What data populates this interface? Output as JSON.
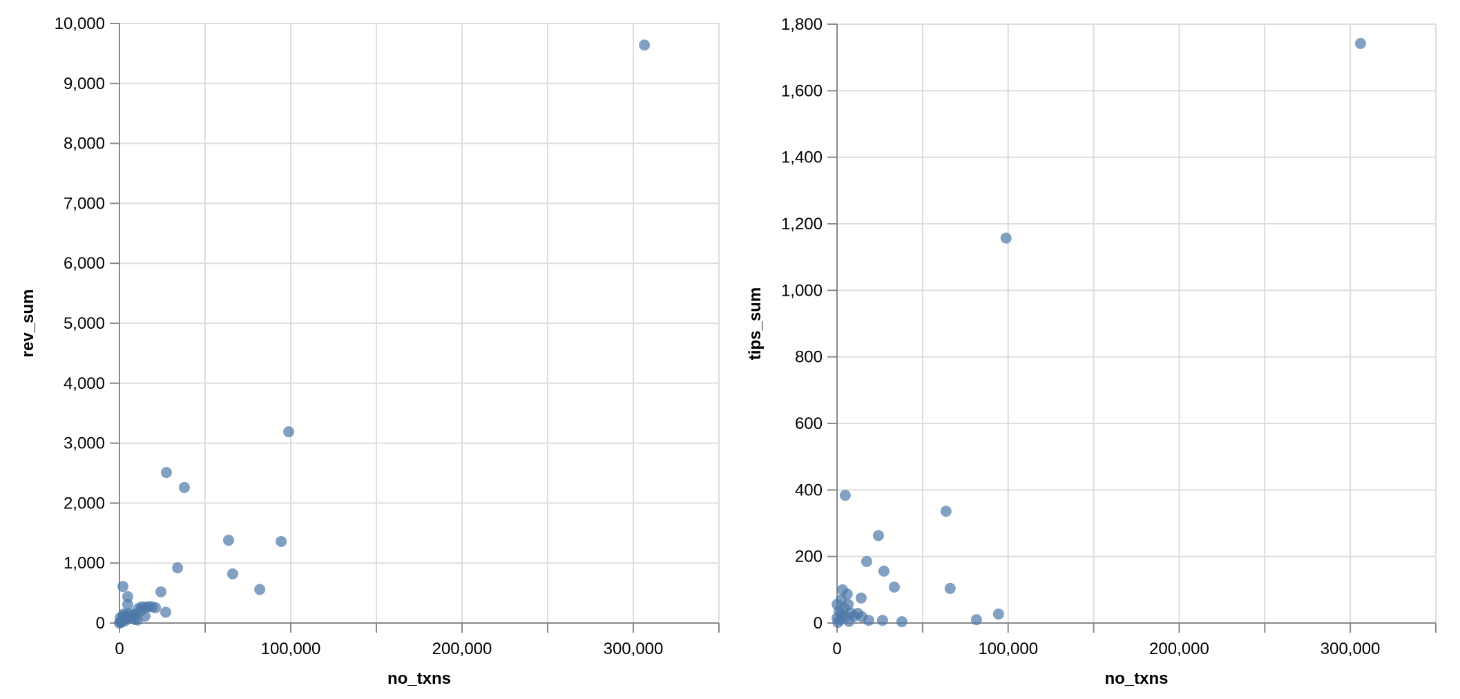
{
  "chart_data": [
    {
      "type": "scatter",
      "title": "",
      "xlabel": "no_txns",
      "ylabel": "rev_sum",
      "xlim": [
        0,
        350000
      ],
      "ylim": [
        0,
        10000
      ],
      "x_ticks": [
        0,
        50000,
        100000,
        150000,
        200000,
        250000,
        300000,
        350000
      ],
      "x_tick_labels": [
        "0",
        "",
        "100,000",
        "",
        "200,000",
        "",
        "300,000",
        ""
      ],
      "y_ticks": [
        0,
        1000,
        2000,
        3000,
        4000,
        5000,
        6000,
        7000,
        8000,
        9000,
        10000
      ],
      "y_tick_labels": [
        "0",
        "1,000",
        "2,000",
        "3,000",
        "4,000",
        "5,000",
        "6,000",
        "7,000",
        "8,000",
        "9,000",
        "10,000"
      ],
      "grid": true,
      "legend": null,
      "color": "#4c78a8",
      "points": [
        {
          "x": 306500,
          "y": 9640
        },
        {
          "x": 98800,
          "y": 3190
        },
        {
          "x": 27400,
          "y": 2510
        },
        {
          "x": 37900,
          "y": 2260
        },
        {
          "x": 63700,
          "y": 1380
        },
        {
          "x": 94400,
          "y": 1360
        },
        {
          "x": 33900,
          "y": 920
        },
        {
          "x": 66100,
          "y": 820
        },
        {
          "x": 81900,
          "y": 560
        },
        {
          "x": 24200,
          "y": 520
        },
        {
          "x": 2000,
          "y": 610
        },
        {
          "x": 4800,
          "y": 440
        },
        {
          "x": 4800,
          "y": 310
        },
        {
          "x": 27000,
          "y": 180
        },
        {
          "x": 14900,
          "y": 115
        },
        {
          "x": 11000,
          "y": 240
        },
        {
          "x": 13000,
          "y": 270
        },
        {
          "x": 15000,
          "y": 260
        },
        {
          "x": 17000,
          "y": 275
        },
        {
          "x": 19000,
          "y": 270
        },
        {
          "x": 21000,
          "y": 255
        },
        {
          "x": 12500,
          "y": 205
        },
        {
          "x": 9000,
          "y": 150
        },
        {
          "x": 500,
          "y": 20
        },
        {
          "x": 1500,
          "y": 50
        },
        {
          "x": 3000,
          "y": 80
        },
        {
          "x": 4500,
          "y": 100
        },
        {
          "x": 6000,
          "y": 120
        },
        {
          "x": 7500,
          "y": 90
        },
        {
          "x": 9000,
          "y": 60
        },
        {
          "x": 2500,
          "y": 150
        },
        {
          "x": 5500,
          "y": 160
        },
        {
          "x": 8000,
          "y": 130
        },
        {
          "x": 1000,
          "y": 10
        },
        {
          "x": 3500,
          "y": 40
        },
        {
          "x": 500,
          "y": 90
        },
        {
          "x": 10500,
          "y": 50
        },
        {
          "x": 0,
          "y": 0
        },
        {
          "x": 2000,
          "y": 120
        }
      ]
    },
    {
      "type": "scatter",
      "title": "",
      "xlabel": "no_txns",
      "ylabel": "tips_sum",
      "xlim": [
        0,
        350000
      ],
      "ylim": [
        0,
        1800
      ],
      "x_ticks": [
        0,
        50000,
        100000,
        150000,
        200000,
        250000,
        300000,
        350000
      ],
      "x_tick_labels": [
        "0",
        "",
        "100,000",
        "",
        "200,000",
        "",
        "300,000",
        ""
      ],
      "y_ticks": [
        0,
        200,
        400,
        600,
        800,
        1000,
        1200,
        1400,
        1600,
        1800
      ],
      "y_tick_labels": [
        "0",
        "200",
        "400",
        "600",
        "800",
        "1,000",
        "1,200",
        "1,400",
        "1,600",
        "1,800"
      ],
      "grid": true,
      "legend": null,
      "color": "#4c78a8",
      "points": [
        {
          "x": 306000,
          "y": 1742
        },
        {
          "x": 98800,
          "y": 1157
        },
        {
          "x": 4800,
          "y": 384
        },
        {
          "x": 63700,
          "y": 336
        },
        {
          "x": 24200,
          "y": 263
        },
        {
          "x": 17300,
          "y": 185
        },
        {
          "x": 27400,
          "y": 156
        },
        {
          "x": 33500,
          "y": 108
        },
        {
          "x": 66100,
          "y": 104
        },
        {
          "x": 3200,
          "y": 100
        },
        {
          "x": 6000,
          "y": 87
        },
        {
          "x": 14100,
          "y": 75
        },
        {
          "x": 2400,
          "y": 70
        },
        {
          "x": 0,
          "y": 56
        },
        {
          "x": 6500,
          "y": 56
        },
        {
          "x": 1200,
          "y": 35
        },
        {
          "x": 12100,
          "y": 29
        },
        {
          "x": 94400,
          "y": 27
        },
        {
          "x": 14500,
          "y": 19
        },
        {
          "x": 0,
          "y": 15
        },
        {
          "x": 18500,
          "y": 8
        },
        {
          "x": 26600,
          "y": 8
        },
        {
          "x": 81500,
          "y": 10
        },
        {
          "x": 37900,
          "y": 4
        },
        {
          "x": 4000,
          "y": 45
        },
        {
          "x": 8000,
          "y": 30
        },
        {
          "x": 10000,
          "y": 20
        },
        {
          "x": 2000,
          "y": 10
        },
        {
          "x": 5000,
          "y": 20
        },
        {
          "x": 7000,
          "y": 5
        },
        {
          "x": 500,
          "y": 2
        },
        {
          "x": 3000,
          "y": 25
        }
      ]
    }
  ]
}
